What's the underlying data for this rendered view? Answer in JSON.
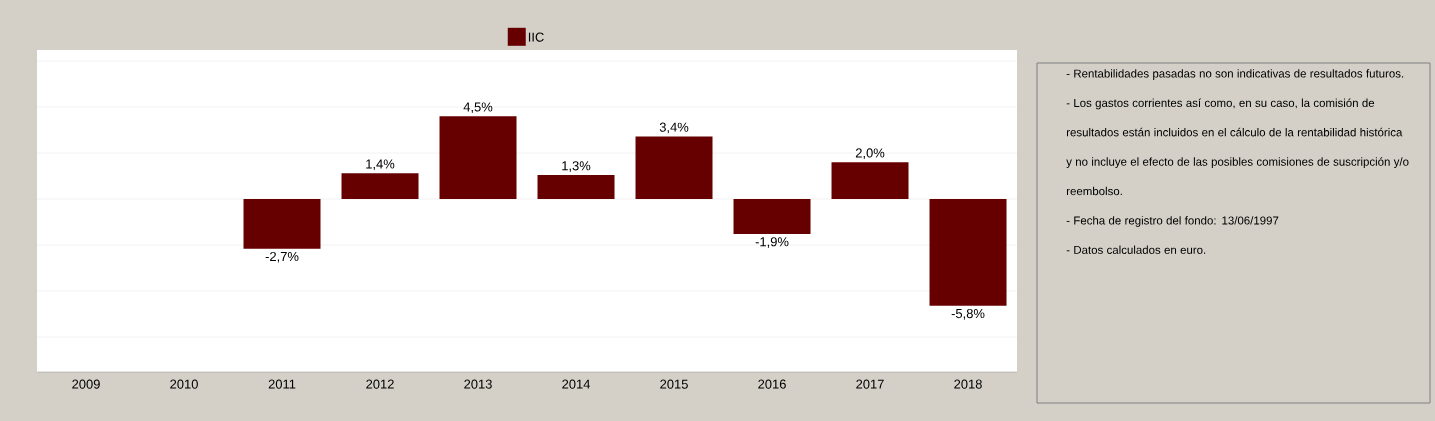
{
  "chart_data": {
    "type": "bar",
    "categories": [
      "2009",
      "2010",
      "2011",
      "2012",
      "2013",
      "2014",
      "2015",
      "2016",
      "2017",
      "2018"
    ],
    "series": [
      {
        "name": "IIC",
        "color": "#660000",
        "values": [
          null,
          null,
          -2.7,
          1.4,
          4.5,
          1.3,
          3.4,
          -1.9,
          2.0,
          -5.8
        ],
        "value_labels": [
          null,
          null,
          "-2,7%",
          "1,4%",
          "4,5%",
          "1,3%",
          "3,4%",
          "-1,9%",
          "2,0%",
          "-5,8%"
        ]
      }
    ],
    "ylim": [
      -9.4,
      8.1
    ],
    "yticks": [
      {
        "value": -7.5,
        "label": null
      },
      {
        "value": -5,
        "label": null
      },
      {
        "value": -2.5,
        "label": null
      },
      {
        "value": 0,
        "label": null
      },
      {
        "value": 2.5,
        "label": null
      },
      {
        "value": 5,
        "label": null
      },
      {
        "value": 7.5,
        "label": null
      }
    ],
    "tick_labels": "x",
    "grid": "y",
    "legend": "top",
    "annotations": [
      "- Rentabilidades pasadas no son indicativas de resultados futuros.",
      "- Los gastos corrientes así como, en su caso, la comisión de resultados están incluidos en el cálculo de la rentabilidad histórica y no incluye el efecto de las posibles comisiones de suscripción y/o reembolso.",
      "- Fecha de registro del fondo: 13/06/1997",
      "- Datos calculados en euro."
    ]
  }
}
